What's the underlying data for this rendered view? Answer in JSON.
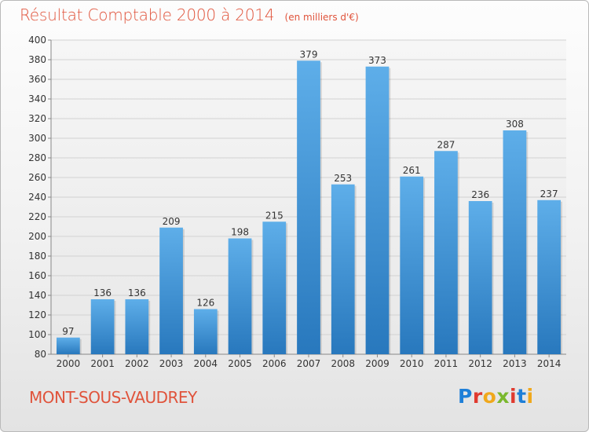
{
  "header": {
    "title": "Résultat Comptable 2000 à 2014",
    "subtitle": "(en milliers d'€)"
  },
  "footer": {
    "commune": "MONT-SOUS-VAUDREY",
    "logo_letters": [
      "P",
      "r",
      "o",
      "x",
      "i",
      "t",
      "i"
    ],
    "logo_colors": [
      "#1e7fd8",
      "#e03a2f",
      "#f0a81c",
      "#7ab82e",
      "#e03a2f",
      "#1e7fd8",
      "#f0a81c"
    ]
  },
  "colors": {
    "accent": "#e0533b",
    "bar_light": "#5aaae6",
    "bar_dark": "#2a7cc0"
  },
  "chart_data": {
    "type": "bar",
    "title": "Résultat Comptable 2000 à 2014",
    "subtitle": "(en milliers d'€)",
    "categories": [
      "2000",
      "2001",
      "2002",
      "2003",
      "2004",
      "2005",
      "2006",
      "2007",
      "2008",
      "2009",
      "2010",
      "2011",
      "2012",
      "2013",
      "2014"
    ],
    "values": [
      97,
      136,
      136,
      209,
      126,
      198,
      215,
      379,
      253,
      373,
      261,
      287,
      236,
      308,
      237
    ],
    "ylim": [
      80,
      400
    ],
    "yticks": [
      80,
      100,
      120,
      140,
      160,
      180,
      200,
      220,
      240,
      260,
      280,
      300,
      320,
      340,
      360,
      380,
      400
    ],
    "grid": true,
    "legend": "none"
  }
}
